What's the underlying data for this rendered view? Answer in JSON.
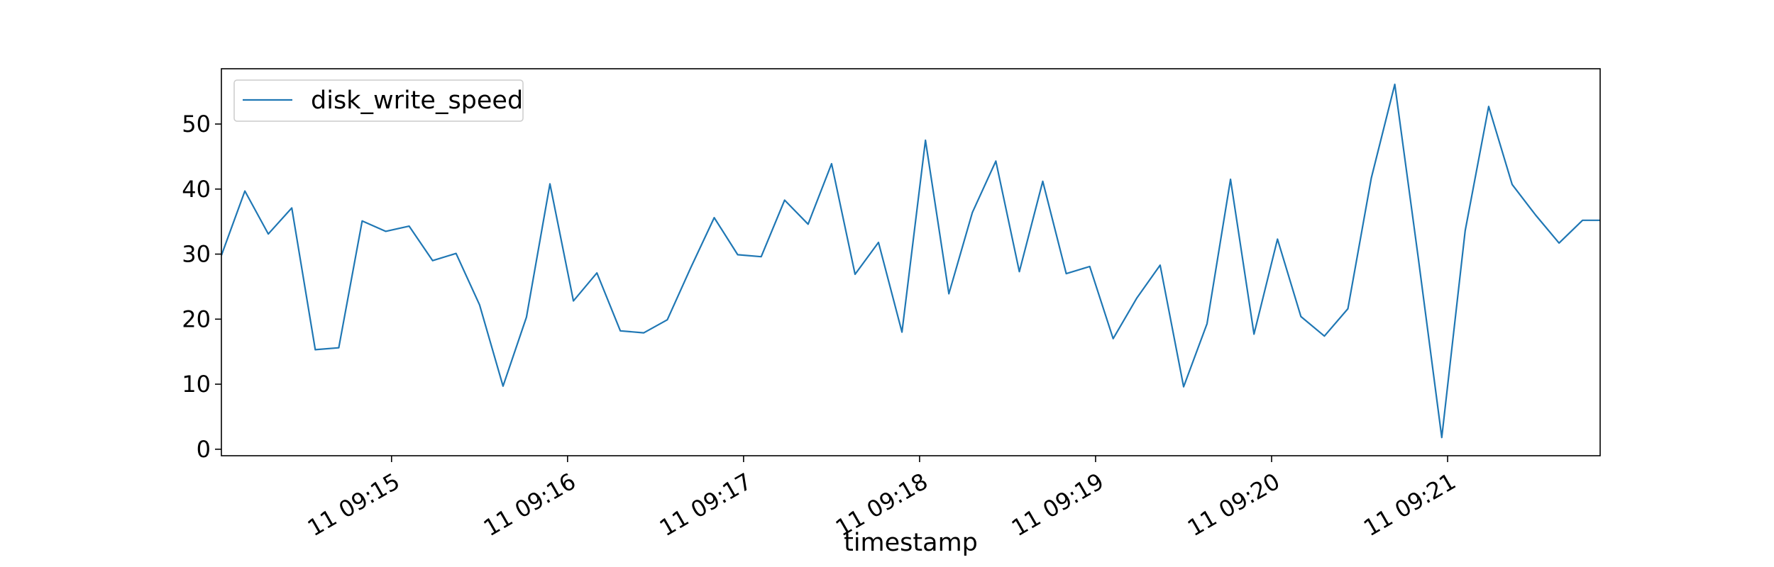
{
  "chart_data": {
    "type": "line",
    "title": "",
    "xlabel": "timestamp",
    "ylabel": "",
    "ylim": [
      -1,
      58.5
    ],
    "yticks": [
      0,
      10,
      20,
      30,
      40,
      50
    ],
    "x_start": "11 09:14:02",
    "x_end": "11 09:21:52",
    "x_tick_labels": [
      "11 09:15",
      "11 09:16",
      "11 09:17",
      "11 09:18",
      "11 09:19",
      "11 09:20",
      "11 09:21"
    ],
    "x_tick_times": [
      "11 09:15:00",
      "11 09:16:00",
      "11 09:17:00",
      "11 09:18:00",
      "11 09:19:00",
      "11 09:20:00",
      "11 09:21:00"
    ],
    "grid": false,
    "legend_position": "top-left",
    "series": [
      {
        "name": "disk_write_speed",
        "color": "#1f77b4",
        "x": [
          "11 09:14:02",
          "11 09:14:10",
          "11 09:14:18",
          "11 09:14:26",
          "11 09:14:34",
          "11 09:14:42",
          "11 09:14:50",
          "11 09:14:58",
          "11 09:15:06",
          "11 09:15:14",
          "11 09:15:22",
          "11 09:15:30",
          "11 09:15:38",
          "11 09:15:46",
          "11 09:15:54",
          "11 09:16:02",
          "11 09:16:10",
          "11 09:16:18",
          "11 09:16:26",
          "11 09:16:34",
          "11 09:16:42",
          "11 09:16:50",
          "11 09:16:58",
          "11 09:17:06",
          "11 09:17:14",
          "11 09:17:22",
          "11 09:17:30",
          "11 09:17:38",
          "11 09:17:46",
          "11 09:17:54",
          "11 09:18:02",
          "11 09:18:10",
          "11 09:18:18",
          "11 09:18:26",
          "11 09:18:34",
          "11 09:18:42",
          "11 09:18:50",
          "11 09:18:58",
          "11 09:19:06",
          "11 09:19:14",
          "11 09:19:22",
          "11 09:19:30",
          "11 09:19:38",
          "11 09:19:46",
          "11 09:19:54",
          "11 09:20:02",
          "11 09:20:10",
          "11 09:20:18",
          "11 09:20:26",
          "11 09:20:34",
          "11 09:20:42",
          "11 09:20:50",
          "11 09:20:58",
          "11 09:21:06",
          "11 09:21:14",
          "11 09:21:22",
          "11 09:21:30",
          "11 09:21:38",
          "11 09:21:46",
          "11 09:21:52"
        ],
        "values": [
          29.8,
          39.7,
          33.1,
          37.1,
          15.3,
          15.6,
          35.1,
          33.5,
          34.3,
          29.0,
          30.1,
          22.2,
          9.7,
          20.3,
          40.8,
          22.8,
          27.1,
          18.2,
          17.9,
          19.9,
          27.9,
          35.6,
          29.9,
          29.6,
          38.3,
          34.6,
          43.9,
          26.9,
          31.8,
          18.0,
          47.5,
          23.9,
          36.4,
          44.3,
          27.3,
          41.2,
          27.0,
          28.1,
          17.0,
          23.2,
          28.3,
          9.6,
          19.3,
          41.5,
          17.7,
          32.3,
          20.4,
          17.4,
          21.6,
          41.7,
          56.1,
          29.4,
          1.8,
          33.6,
          52.7,
          40.7,
          36.0,
          31.7,
          35.2,
          35.2
        ]
      }
    ]
  }
}
